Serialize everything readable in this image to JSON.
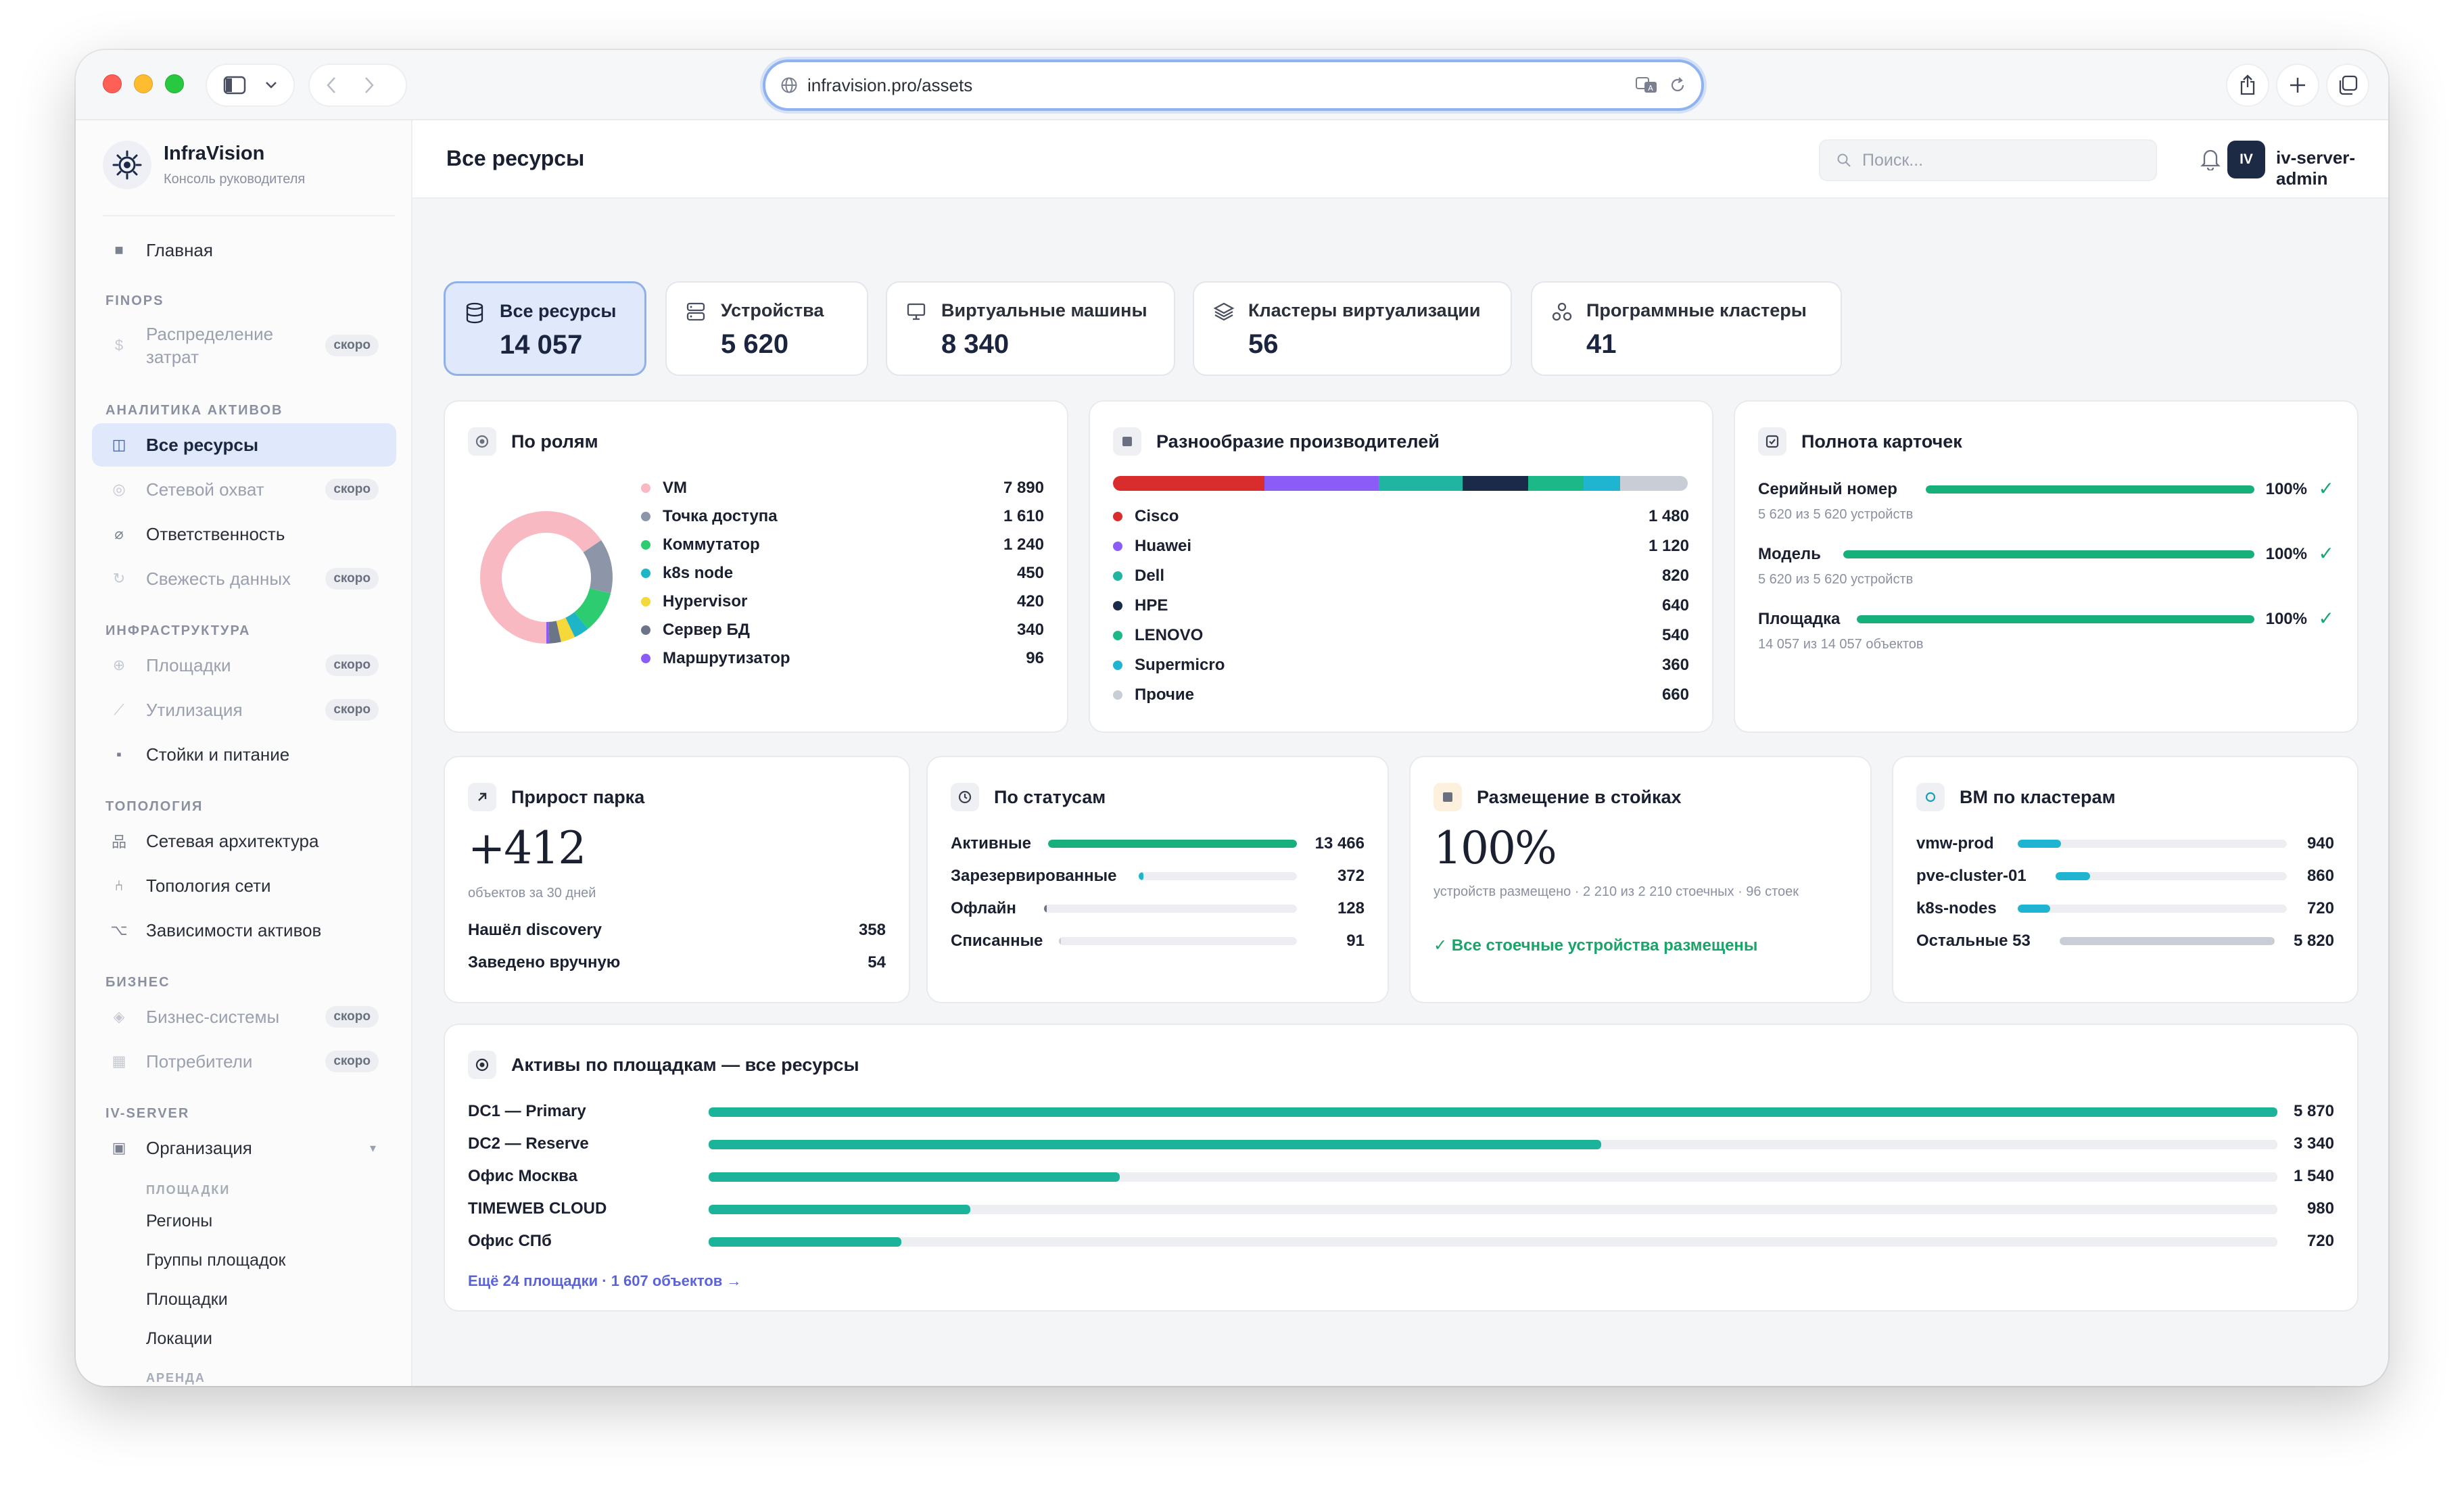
{
  "browser": {
    "url": "infravision.pro/assets"
  },
  "brand": {
    "name": "InfraVision",
    "subtitle": "Консоль руководителя"
  },
  "sidebar": {
    "home": "Главная",
    "sections": {
      "finops": "FINOPS",
      "analytics": "АНАЛИТИКА АКТИВОВ",
      "infra": "ИНФРАСТРУКТУРА",
      "topology": "ТОПОЛОГИЯ",
      "business": "БИЗНЕС",
      "ivserver": "IV-SERVER"
    },
    "soon_label": "скоро",
    "items": {
      "cost_distribution": "Распределение затрат",
      "all_resources": "Все ресурсы",
      "network_coverage": "Сетевой охват",
      "responsibility": "Ответственность",
      "data_freshness": "Свежесть данных",
      "sites": "Площадки",
      "utilization": "Утилизация",
      "racks_power": "Стойки и питание",
      "network_arch": "Сетевая архитектура",
      "network_topology": "Топология сети",
      "asset_deps": "Зависимости активов",
      "business_systems": "Бизнес-системы",
      "consumers": "Потребители",
      "organization": "Организация"
    },
    "org_sub": {
      "section_sites": "ПЛОЩАДКИ",
      "regions": "Регионы",
      "site_groups": "Группы площадок",
      "sites": "Площадки",
      "locations": "Локации",
      "section_rent": "АРЕНДА"
    }
  },
  "topbar": {
    "title": "Все ресурсы",
    "search_placeholder": "Поиск...",
    "avatar_initials": "IV",
    "username": "iv-server-admin"
  },
  "tabs": [
    {
      "label": "Все ресурсы",
      "value": "14 057",
      "icon": "database-icon"
    },
    {
      "label": "Устройства",
      "value": "5 620",
      "icon": "server-icon"
    },
    {
      "label": "Виртуальные машины",
      "value": "8 340",
      "icon": "monitor-icon"
    },
    {
      "label": "Кластеры виртуализации",
      "value": "56",
      "icon": "layers-icon"
    },
    {
      "label": "Программные кластеры",
      "value": "41",
      "icon": "cluster-icon"
    }
  ],
  "roles": {
    "title": "По ролям",
    "items": [
      {
        "label": "VM",
        "value": "7 890",
        "n": 7890,
        "color": "#f8b9c2"
      },
      {
        "label": "Точка доступа",
        "value": "1 610",
        "n": 1610,
        "color": "#8c96a8"
      },
      {
        "label": "Коммутатор",
        "value": "1 240",
        "n": 1240,
        "color": "#2ecc71"
      },
      {
        "label": "k8s node",
        "value": "450",
        "n": 450,
        "color": "#1fb5c8"
      },
      {
        "label": "Hypervisor",
        "value": "420",
        "n": 420,
        "color": "#f5d83a"
      },
      {
        "label": "Сервер БД",
        "value": "340",
        "n": 340,
        "color": "#6c7488"
      },
      {
        "label": "Маршрутизатор",
        "value": "96",
        "n": 96,
        "color": "#8b5cf6"
      }
    ]
  },
  "vendors": {
    "title": "Разнообразие производителей",
    "items": [
      {
        "label": "Cisco",
        "value": "1 480",
        "n": 1480,
        "color": "#d92d2d"
      },
      {
        "label": "Huawei",
        "value": "1 120",
        "n": 1120,
        "color": "#8b5cf6"
      },
      {
        "label": "Dell",
        "value": "820",
        "n": 820,
        "color": "#1fb5a0"
      },
      {
        "label": "HPE",
        "value": "640",
        "n": 640,
        "color": "#1c2a4a"
      },
      {
        "label": "LENOVO",
        "value": "540",
        "n": 540,
        "color": "#1db887"
      },
      {
        "label": "Supermicro",
        "value": "360",
        "n": 360,
        "color": "#1fb5d0"
      },
      {
        "label": "Прочие",
        "value": "660",
        "n": 660,
        "color": "#c9ced6"
      }
    ]
  },
  "completeness": {
    "title": "Полнота карточек",
    "items": [
      {
        "label": "Серийный номер",
        "pct": "100%",
        "fraction": 1.0,
        "sub": "5 620 из 5 620 устройств"
      },
      {
        "label": "Модель",
        "pct": "100%",
        "fraction": 1.0,
        "sub": "5 620 из 5 620 устройств"
      },
      {
        "label": "Площадка",
        "pct": "100%",
        "fraction": 1.0,
        "sub": "14 057 из 14 057 объектов"
      }
    ]
  },
  "growth": {
    "title": "Прирост парка",
    "value": "+412",
    "sub": "объектов за 30 дней",
    "rows": [
      {
        "label": "Нашёл discovery",
        "value": "358"
      },
      {
        "label": "Заведено вручную",
        "value": "54"
      }
    ]
  },
  "statuses": {
    "title": "По статусам",
    "items": [
      {
        "label": "Активные",
        "value": "13 466",
        "fraction": 1.0,
        "color": "#18b07a"
      },
      {
        "label": "Зарезервированные",
        "value": "372",
        "fraction": 0.03,
        "color": "#1fb5c8"
      },
      {
        "label": "Офлайн",
        "value": "128",
        "fraction": 0.01,
        "color": "#6c7488"
      },
      {
        "label": "Списанные",
        "value": "91",
        "fraction": 0.007,
        "color": "#c9ced6"
      }
    ]
  },
  "racks": {
    "title": "Размещение в стойках",
    "value": "100%",
    "sub": "устройств размещено · 2 210 из 2 210 стоечных · 96 стоек",
    "ok": "✓ Все стоечные устройства размещены"
  },
  "vm_clusters": {
    "title": "ВМ по кластерам",
    "items": [
      {
        "label": "vmw-prod",
        "value": "940",
        "fraction": 0.16,
        "color": "#1fb5d0"
      },
      {
        "label": "pve-cluster-01",
        "value": "860",
        "fraction": 0.15,
        "color": "#1fb5d0"
      },
      {
        "label": "k8s-nodes",
        "value": "720",
        "fraction": 0.12,
        "color": "#1fb5d0"
      },
      {
        "label": "Остальные 53",
        "value": "5 820",
        "fraction": 1.0,
        "color": "#c9ced6"
      }
    ]
  },
  "sites_card": {
    "title": "Активы по площадкам — все ресурсы",
    "items": [
      {
        "label": "DC1 — Primary",
        "value": "5 870",
        "fraction": 1.0
      },
      {
        "label": "DC2 — Reserve",
        "value": "3 340",
        "fraction": 0.569
      },
      {
        "label": "Офис Москва",
        "value": "1 540",
        "fraction": 0.262
      },
      {
        "label": "TIMEWEB CLOUD",
        "value": "980",
        "fraction": 0.167
      },
      {
        "label": "Офис СПб",
        "value": "720",
        "fraction": 0.123
      }
    ],
    "more_link": "Ещё 24 площадки · 1 607 объектов →",
    "bar_color": "#1db39a"
  }
}
